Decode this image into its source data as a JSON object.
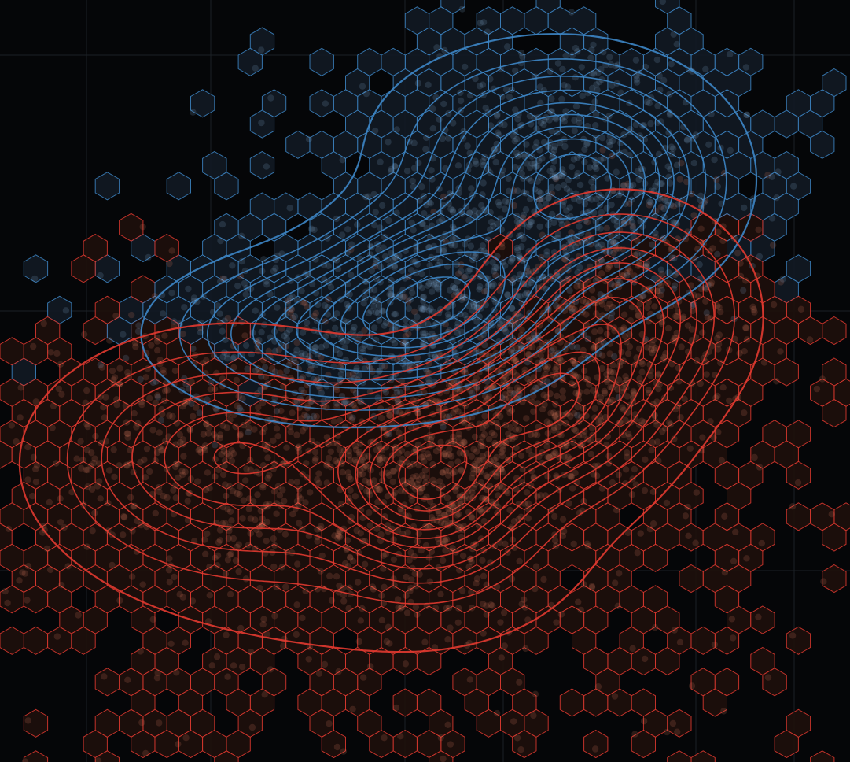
{
  "chart_data": {
    "type": "scatter",
    "subtype": "hexbin-with-kde-contours",
    "title": "",
    "xlabel": "",
    "ylabel": "",
    "grid": true,
    "legend": "none",
    "xlim": [
      0,
      10
    ],
    "ylim": [
      0,
      9
    ],
    "background": "#050608",
    "grid_color": "#1c2026",
    "series": [
      {
        "color": "#3d86c6",
        "point_color": "#8fb8e6",
        "clusters": [
          {
            "cx": 6.85,
            "cy": 6.75,
            "sx": 0.95,
            "sy": 0.75,
            "n": 900
          },
          {
            "cx": 5.25,
            "cy": 5.55,
            "sx": 0.85,
            "sy": 0.6,
            "n": 700
          },
          {
            "cx": 3.9,
            "cy": 5.05,
            "sx": 1.15,
            "sy": 0.55,
            "n": 650
          },
          {
            "cx": 6.2,
            "cy": 7.4,
            "sx": 1.3,
            "sy": 0.75,
            "n": 350
          }
        ]
      },
      {
        "color": "#e23a30",
        "point_color": "#f0866a",
        "clusters": [
          {
            "cx": 7.3,
            "cy": 5.3,
            "sx": 0.85,
            "sy": 0.75,
            "n": 800
          },
          {
            "cx": 6.4,
            "cy": 4.2,
            "sx": 0.75,
            "sy": 0.6,
            "n": 700
          },
          {
            "cx": 5.05,
            "cy": 3.35,
            "sx": 0.7,
            "sy": 0.65,
            "n": 800
          },
          {
            "cx": 2.7,
            "cy": 3.65,
            "sx": 1.25,
            "sy": 0.8,
            "n": 1000
          },
          {
            "cx": 4.6,
            "cy": 2.5,
            "sx": 2.6,
            "sy": 1.35,
            "n": 900
          }
        ]
      }
    ]
  }
}
